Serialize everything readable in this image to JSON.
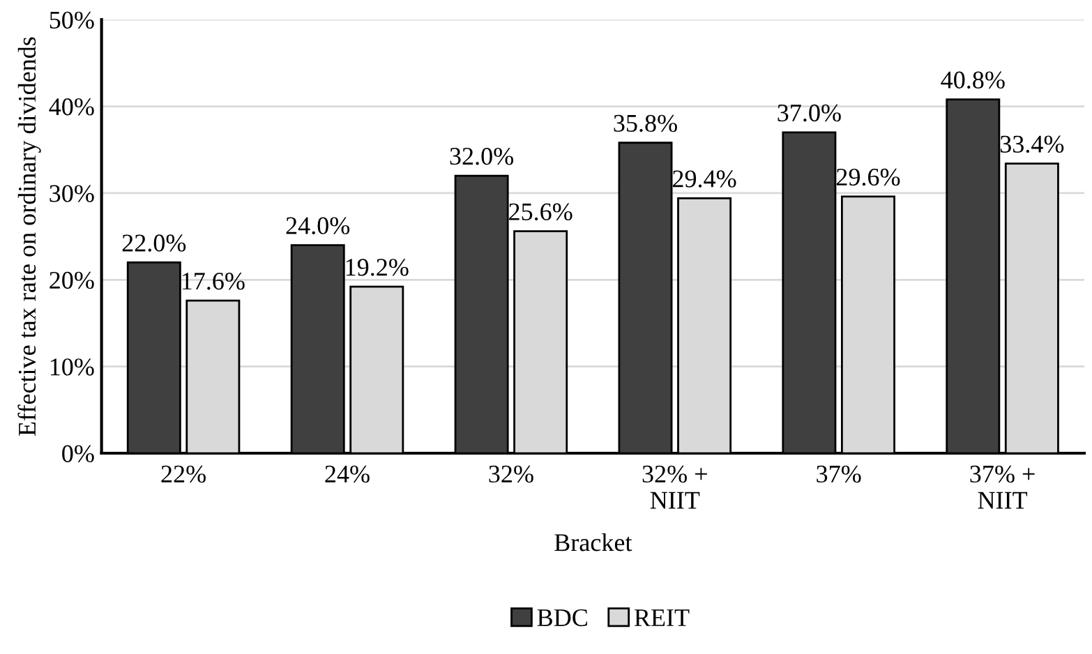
{
  "chart_data": {
    "type": "bar",
    "xlabel": "Bracket",
    "ylabel": "Effective tax rate on ordinary dividends",
    "categories": [
      "22%",
      "24%",
      "32%",
      "32% +\nNIIT",
      "37%",
      "37% +\nNIIT"
    ],
    "series": [
      {
        "name": "BDC",
        "color": "#404040",
        "values": [
          22.0,
          24.0,
          32.0,
          35.8,
          37.0,
          40.8
        ],
        "value_labels": [
          "22.0%",
          "24.0%",
          "32.0%",
          "35.8%",
          "37.0%",
          "40.8%"
        ]
      },
      {
        "name": "REIT",
        "color": "#d9d9d9",
        "values": [
          17.6,
          19.2,
          25.6,
          29.4,
          29.6,
          33.4
        ],
        "value_labels": [
          "17.6%",
          "19.2%",
          "25.6%",
          "29.4%",
          "29.6%",
          "33.4%"
        ]
      }
    ],
    "ylim": [
      0,
      50
    ],
    "yticks": [
      {
        "value": 0,
        "label": "0%"
      },
      {
        "value": 10,
        "label": "10%"
      },
      {
        "value": 20,
        "label": "20%"
      },
      {
        "value": 30,
        "label": "30%"
      },
      {
        "value": 40,
        "label": "40%"
      },
      {
        "value": 50,
        "label": "50%"
      }
    ],
    "grid": "y",
    "legend": "bottom"
  }
}
